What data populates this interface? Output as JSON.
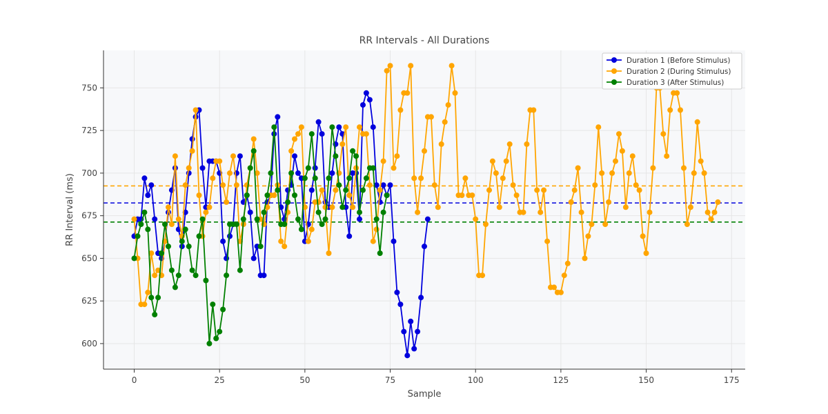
{
  "chart_data": {
    "type": "line",
    "title": "RR Intervals - All Durations",
    "xlabel": "Sample",
    "ylabel": "RR Interval (ms)",
    "xlim": [
      -9,
      179
    ],
    "ylim": [
      585,
      772
    ],
    "xticks": [
      0,
      25,
      50,
      75,
      100,
      125,
      150,
      175
    ],
    "yticks": [
      600,
      625,
      650,
      675,
      700,
      725,
      750
    ],
    "grid": true,
    "legend_position": "top-right",
    "series": [
      {
        "name": "Duration 1 (Before Stimulus)",
        "color": "#0000dd",
        "mean": 682.5,
        "values": [
          663,
          673,
          673,
          697,
          687,
          693,
          673,
          653,
          650,
          660,
          677,
          690,
          703,
          667,
          657,
          677,
          700,
          720,
          733,
          737,
          703,
          680,
          707,
          707,
          707,
          700,
          660,
          650,
          663,
          670,
          700,
          710,
          683,
          687,
          677,
          650,
          657,
          640,
          640,
          683,
          687,
          723,
          733,
          680,
          673,
          690,
          693,
          710,
          700,
          697,
          660,
          670,
          690,
          703,
          730,
          723,
          683,
          680,
          700,
          717,
          727,
          723,
          680,
          663,
          700,
          700,
          673,
          740,
          747,
          743,
          727,
          693,
          683,
          693,
          687,
          693,
          660,
          630,
          623,
          607,
          593,
          613,
          597,
          607,
          627,
          657,
          673
        ]
      },
      {
        "name": "Duration 2 (During Stimulus)",
        "color": "#ffa500",
        "mean": 692.5,
        "values": [
          673,
          650,
          623,
          623,
          630,
          653,
          640,
          643,
          640,
          660,
          680,
          670,
          710,
          673,
          663,
          693,
          703,
          713,
          737,
          687,
          663,
          677,
          680,
          697,
          707,
          707,
          693,
          683,
          700,
          710,
          693,
          660,
          670,
          693,
          703,
          720,
          700,
          673,
          670,
          680,
          687,
          687,
          693,
          660,
          657,
          677,
          713,
          720,
          723,
          727,
          680,
          660,
          667,
          683,
          683,
          690,
          680,
          653,
          680,
          690,
          700,
          717,
          727,
          687,
          680,
          703,
          727,
          723,
          723,
          693,
          660,
          667,
          690,
          707,
          760,
          763,
          703,
          710,
          737,
          747,
          747,
          763,
          697,
          677,
          697,
          713,
          733,
          733,
          693,
          680,
          717,
          730,
          740,
          763,
          747,
          687,
          687,
          697,
          687,
          687,
          673,
          640,
          640,
          670,
          690,
          707,
          700,
          680,
          697,
          707,
          717,
          693,
          687,
          677,
          677,
          717,
          737,
          737,
          690,
          677,
          690,
          660,
          633,
          633,
          630,
          630,
          640,
          647,
          683,
          690,
          703,
          677,
          650,
          663,
          670,
          693,
          727,
          700,
          670,
          683,
          700,
          707,
          723,
          713,
          680,
          700,
          710,
          693,
          690,
          663,
          653,
          677,
          703,
          750,
          750,
          723,
          710,
          737,
          747,
          747,
          737,
          703,
          670,
          680,
          700,
          730,
          707,
          700,
          677,
          673,
          677,
          683
        ]
      },
      {
        "name": "Duration 3 (After Stimulus)",
        "color": "#008000",
        "mean": 671.3,
        "values": [
          650,
          663,
          670,
          677,
          667,
          627,
          617,
          627,
          653,
          670,
          657,
          643,
          633,
          640,
          660,
          667,
          657,
          643,
          640,
          663,
          673,
          637,
          600,
          623,
          603,
          607,
          620,
          640,
          670,
          670,
          670,
          643,
          673,
          687,
          703,
          713,
          673,
          657,
          677,
          687,
          700,
          727,
          690,
          670,
          670,
          683,
          700,
          687,
          673,
          667,
          697,
          703,
          723,
          697,
          677,
          670,
          673,
          697,
          727,
          710,
          693,
          680,
          690,
          697,
          713,
          710,
          677,
          690,
          697,
          703,
          703,
          673,
          653,
          677,
          687
        ]
      }
    ]
  }
}
